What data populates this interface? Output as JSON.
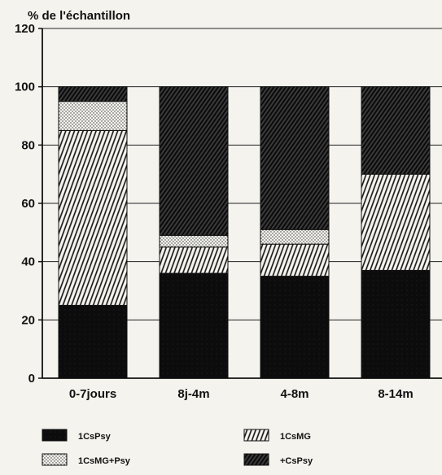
{
  "chart_data": {
    "type": "bar",
    "stacked": true,
    "ylabel": "% de l'échantillon",
    "ylim": [
      0,
      120
    ],
    "yticks": [
      0,
      20,
      40,
      60,
      80,
      100,
      120
    ],
    "grid": true,
    "legend_position": "bottom",
    "categories": [
      "0-7jours",
      "8j-4m",
      "4-8m",
      "8-14m"
    ],
    "series": [
      {
        "name": "1CsPsy",
        "pattern": "solid-black",
        "values": [
          25,
          36,
          35,
          37
        ]
      },
      {
        "name": "1CsMG",
        "pattern": "vertical-hatch",
        "values": [
          60,
          9,
          11,
          33
        ]
      },
      {
        "name": "1CsMG+Psy",
        "pattern": "dots",
        "values": [
          10,
          4,
          5,
          0
        ]
      },
      {
        "name": "+CsPsy",
        "pattern": "diagonal-hatch",
        "values": [
          5,
          51,
          49,
          30
        ]
      }
    ]
  }
}
